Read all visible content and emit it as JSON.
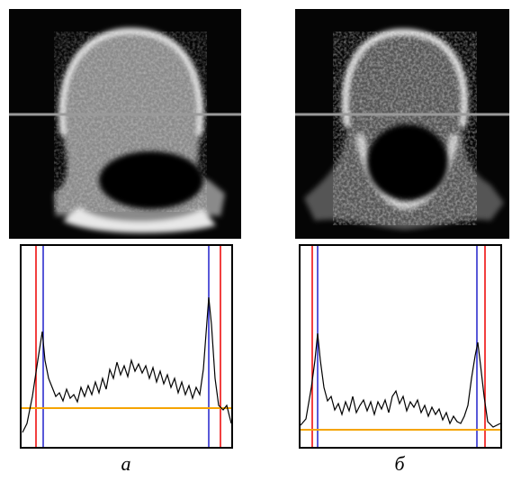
{
  "captions": [
    "а",
    "б"
  ]
}
